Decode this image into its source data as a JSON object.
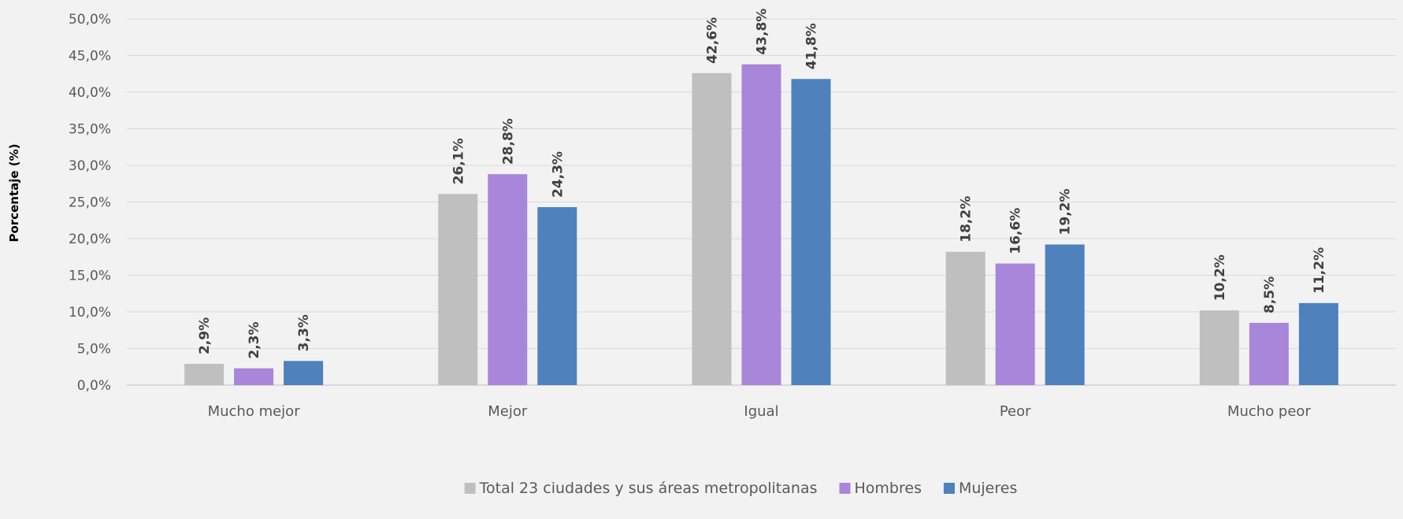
{
  "chart_data": {
    "type": "bar",
    "title": "",
    "xlabel": "",
    "ylabel": "Porcentaje (%)",
    "ylim": [
      0,
      50
    ],
    "ytick_step": 5,
    "ytick_labels": [
      "0,0%",
      "5,0%",
      "10,0%",
      "15,0%",
      "20,0%",
      "25,0%",
      "30,0%",
      "35,0%",
      "40,0%",
      "45,0%",
      "50,0%"
    ],
    "categories": [
      "Mucho mejor",
      "Mejor",
      "Igual",
      "Peor",
      "Mucho peor"
    ],
    "series": [
      {
        "name": "Total 23 ciudades y sus áreas metropolitanas",
        "color": "#bfbfbf",
        "values": [
          2.9,
          26.1,
          42.6,
          18.2,
          10.2
        ],
        "labels": [
          "2,9%",
          "26,1%",
          "42,6%",
          "18,2%",
          "10,2%"
        ]
      },
      {
        "name": "Hombres",
        "color": "#a886d9",
        "values": [
          2.3,
          28.8,
          43.8,
          16.6,
          8.5
        ],
        "labels": [
          "2,3%",
          "28,8%",
          "43,8%",
          "16,6%",
          "8,5%"
        ]
      },
      {
        "name": "Mujeres",
        "color": "#4f81bd",
        "values": [
          3.3,
          24.3,
          41.8,
          19.2,
          11.2
        ],
        "labels": [
          "3,3%",
          "24,3%",
          "41,8%",
          "19,2%",
          "11,2%"
        ]
      }
    ],
    "grid": true,
    "legend_position": "bottom"
  }
}
